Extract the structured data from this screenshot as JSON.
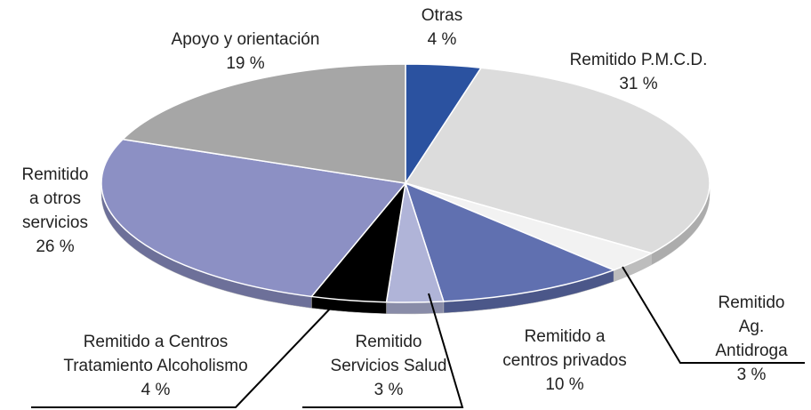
{
  "chart_data": {
    "type": "pie3d",
    "categories": [
      "Otras",
      "Remitido P.M.C.D.",
      "Remitido Ag.\nAntidroga",
      "Remitido a\ncentros privados",
      "Remitido\nServicios Salud",
      "Remitido a Centros\nTratamiento Alcoholismo",
      "Remitido\na otros\nservicios",
      "Apoyo y orientación"
    ],
    "values": [
      4,
      31,
      3,
      10,
      3,
      4,
      26,
      19
    ],
    "value_labels": [
      "4 %",
      "31 %",
      "3 %",
      "10 %",
      "3 %",
      "4 %",
      "26 %",
      "19 %"
    ],
    "colors": [
      "#2b52a0",
      "#dcdcdc",
      "#f2f2f2",
      "#6070b0",
      "#b0b4d8",
      "#000000",
      "#8c90c4",
      "#a6a6a6"
    ]
  }
}
